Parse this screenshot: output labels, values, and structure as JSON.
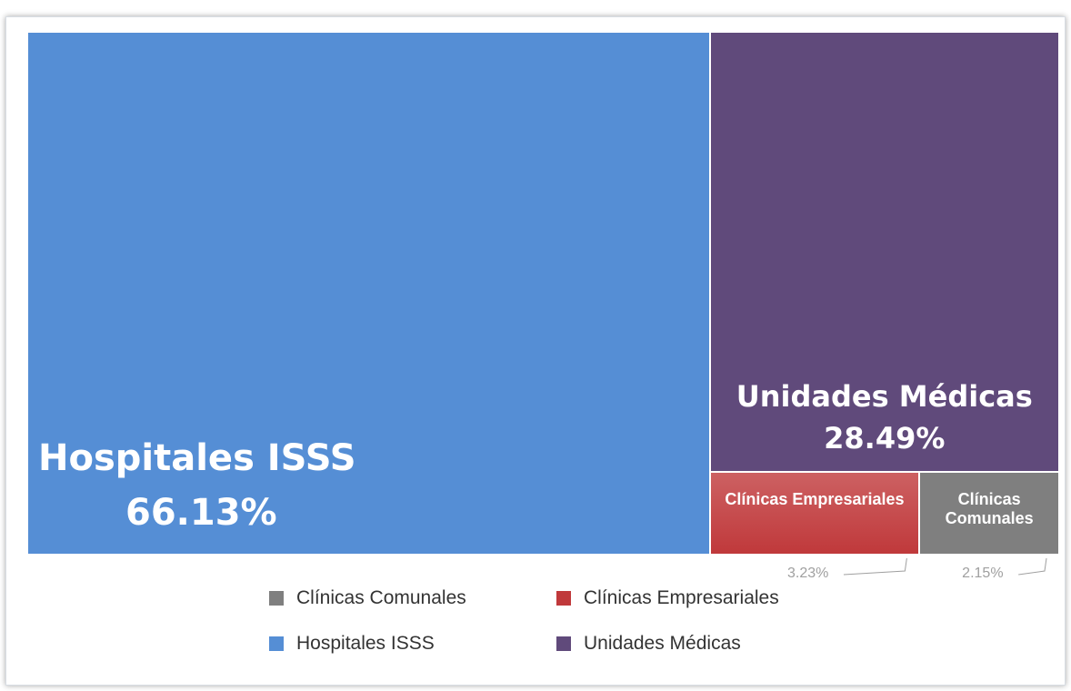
{
  "chart_data": {
    "type": "treemap",
    "categories": [
      "Hospitales ISSS",
      "Unidades Médicas",
      "Clínicas Empresariales",
      "Clínicas Comunales"
    ],
    "values": [
      66.13,
      28.49,
      3.23,
      2.15
    ],
    "value_labels": [
      "66.13%",
      "28.49%",
      "3.23%",
      "2.15%"
    ],
    "colors": [
      "#558ed5",
      "#604a7b",
      "#c0393b",
      "#7f7f7f"
    ],
    "legend": true
  }
}
